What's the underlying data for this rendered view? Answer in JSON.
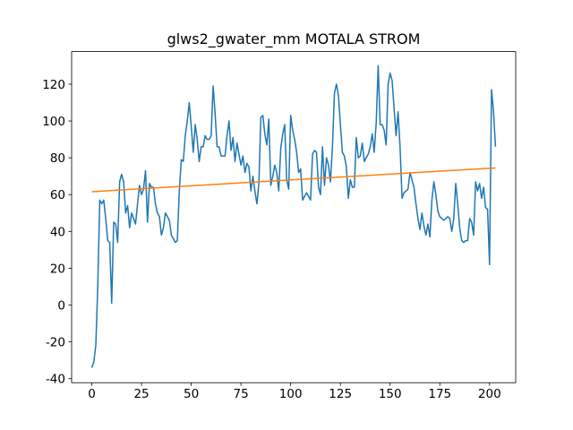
{
  "chart_data": {
    "type": "line",
    "title": "glws2_gwater_mm MOTALA STROM",
    "x": [
      0,
      1,
      2,
      3,
      4,
      5,
      6,
      7,
      8,
      9,
      10,
      11,
      12,
      13,
      14,
      15,
      16,
      17,
      18,
      19,
      20,
      21,
      22,
      23,
      24,
      25,
      26,
      27,
      28,
      29,
      30,
      31,
      32,
      33,
      34,
      35,
      36,
      37,
      38,
      39,
      40,
      41,
      42,
      43,
      44,
      45,
      46,
      47,
      48,
      49,
      50,
      51,
      52,
      53,
      54,
      55,
      56,
      57,
      58,
      59,
      60,
      61,
      62,
      63,
      64,
      65,
      66,
      67,
      68,
      69,
      70,
      71,
      72,
      73,
      74,
      75,
      76,
      77,
      78,
      79,
      80,
      81,
      82,
      83,
      84,
      85,
      86,
      87,
      88,
      89,
      90,
      91,
      92,
      93,
      94,
      95,
      96,
      97,
      98,
      99,
      100,
      101,
      102,
      103,
      104,
      105,
      106,
      107,
      108,
      109,
      110,
      111,
      112,
      113,
      114,
      115,
      116,
      117,
      118,
      119,
      120,
      121,
      122,
      123,
      124,
      125,
      126,
      127,
      128,
      129,
      130,
      131,
      132,
      133,
      134,
      135,
      136,
      137,
      138,
      139,
      140,
      141,
      142,
      143,
      144,
      145,
      146,
      147,
      148,
      149,
      150,
      151,
      152,
      153,
      154,
      155,
      156,
      157,
      158,
      159,
      160,
      161,
      162,
      163,
      164,
      165,
      166,
      167,
      168,
      169,
      170,
      171,
      172,
      173,
      174,
      175,
      176,
      177,
      178,
      179,
      180,
      181,
      182,
      183,
      184,
      185,
      186,
      187,
      188,
      189,
      190,
      191,
      192,
      193,
      194,
      195,
      196,
      197,
      198,
      199,
      200,
      201,
      202,
      203
    ],
    "series": [
      {
        "color": "#1f77b4",
        "values": [
          -34,
          -31,
          -22,
          10,
          57,
          55,
          57,
          47,
          35,
          34,
          1,
          45,
          44,
          34,
          67,
          71,
          67,
          50,
          54,
          42,
          50,
          47,
          44,
          55,
          65,
          60,
          63,
          73,
          45,
          66,
          64,
          64,
          55,
          50,
          48,
          38,
          42,
          50,
          48,
          46,
          38,
          36,
          34,
          35,
          62,
          79,
          78,
          92,
          100,
          110,
          97,
          83,
          98,
          90,
          78,
          86,
          86,
          92,
          90,
          90,
          92,
          119,
          104,
          86,
          86,
          81,
          81,
          81,
          92,
          100,
          84,
          91,
          78,
          88,
          82,
          76,
          81,
          72,
          77,
          75,
          62,
          70,
          62,
          55,
          66,
          102,
          103,
          93,
          87,
          101,
          65,
          70,
          76,
          72,
          62,
          85,
          93,
          98,
          68,
          63,
          103,
          95,
          90,
          83,
          72,
          74,
          57,
          59,
          61,
          59,
          57,
          82,
          84,
          83,
          64,
          60,
          86,
          65,
          80,
          76,
          67,
          86,
          115,
          120,
          114,
          98,
          83,
          81,
          75,
          58,
          68,
          64,
          64,
          91,
          80,
          81,
          88,
          78,
          80,
          82,
          86,
          93,
          83,
          99,
          130,
          98,
          98,
          95,
          87,
          120,
          126,
          122,
          107,
          92,
          105,
          86,
          58,
          61,
          62,
          63,
          72,
          68,
          64,
          55,
          47,
          41,
          50,
          43,
          38,
          44,
          37,
          57,
          67,
          60,
          51,
          48,
          47,
          46,
          47,
          48,
          47,
          40,
          47,
          66,
          55,
          42,
          35,
          34,
          35,
          35,
          47,
          45,
          38,
          67,
          62,
          66,
          58,
          64,
          53,
          52,
          22,
          117,
          105,
          86
        ]
      },
      {
        "color": "#ff7f0e",
        "x": [
          0,
          203
        ],
        "values": [
          61.6,
          74.5
        ]
      }
    ],
    "xlim": [
      -10.15,
      213.15
    ],
    "ylim": [
      -42.2,
      137.7
    ],
    "xticks": [
      0,
      25,
      50,
      75,
      100,
      125,
      150,
      175,
      200
    ],
    "yticks": [
      -40,
      -20,
      0,
      20,
      40,
      60,
      80,
      100,
      120
    ]
  }
}
